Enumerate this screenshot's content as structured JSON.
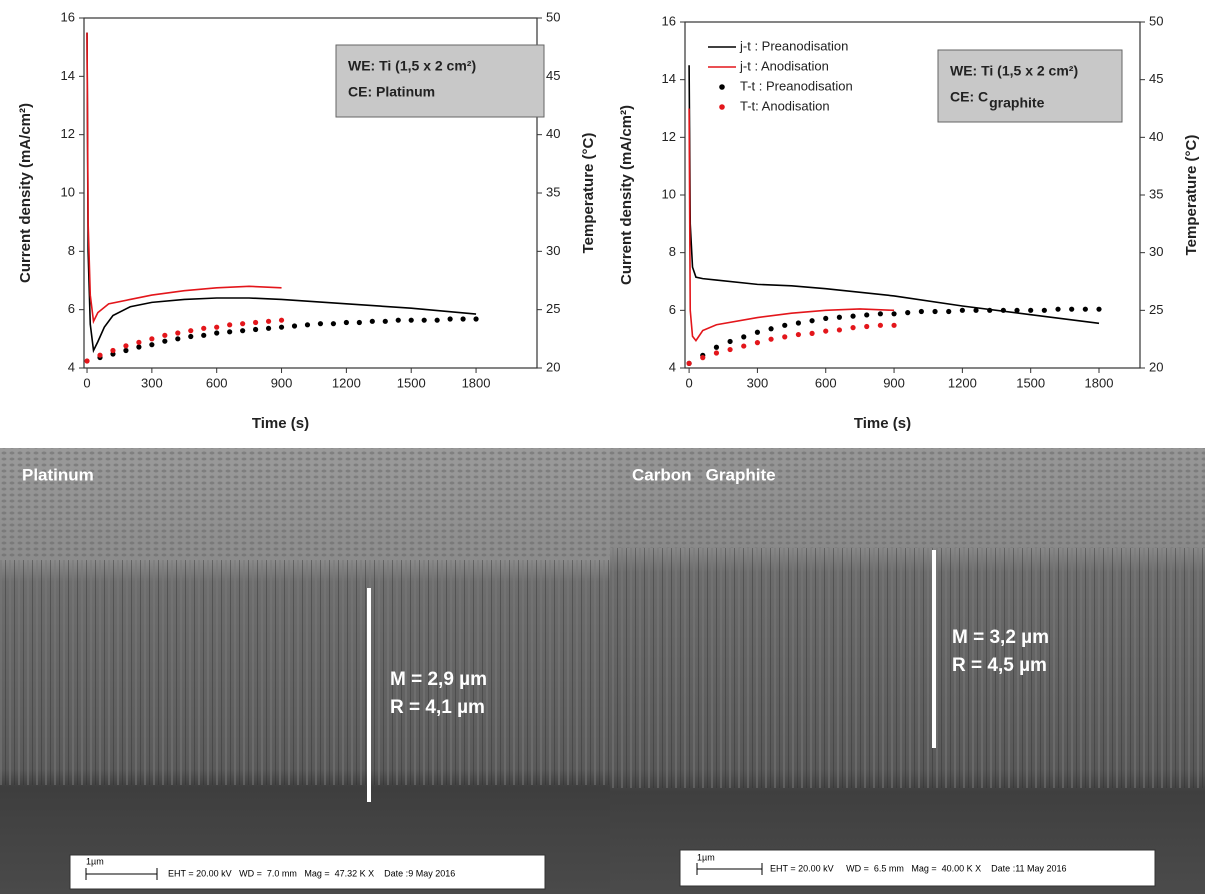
{
  "chart_data": [
    {
      "type": "line",
      "xlabel": "Time (s)",
      "ylabel": "Current density (mA/cm²)",
      "y2label": "Temperature (°C)",
      "xlim": [
        -14,
        2082
      ],
      "xticks": [
        0,
        300,
        600,
        900,
        1200,
        1500,
        1800
      ],
      "ylim": [
        4,
        16
      ],
      "yticks": [
        4,
        6,
        8,
        10,
        12,
        14,
        16
      ],
      "y2lim": [
        20,
        50
      ],
      "y2ticks": [
        20,
        25,
        30,
        35,
        40,
        45,
        50
      ],
      "annotation": {
        "lines": [
          "WE: Ti (1,5 x 2 cm²)",
          "CE: Platinum"
        ]
      },
      "series": [
        {
          "color": "#000000",
          "style": "line",
          "x": [
            0,
            5,
            15,
            30,
            50,
            80,
            120,
            200,
            300,
            450,
            600,
            750,
            900,
            1200,
            1500,
            1800
          ],
          "values": [
            15.5,
            8,
            5.5,
            4.6,
            4.9,
            5.4,
            5.8,
            6.1,
            6.25,
            6.35,
            6.4,
            6.4,
            6.35,
            6.2,
            6.05,
            5.85
          ]
        },
        {
          "color": "#e3161b",
          "style": "line",
          "x": [
            0,
            5,
            15,
            30,
            50,
            100,
            200,
            300,
            450,
            600,
            750,
            900
          ],
          "values": [
            15.5,
            9,
            6.5,
            5.6,
            5.9,
            6.2,
            6.35,
            6.5,
            6.65,
            6.75,
            6.8,
            6.75
          ]
        },
        {
          "color": "#000000",
          "style": "dots",
          "axis": "y2",
          "x": [
            60,
            120,
            180,
            240,
            300,
            360,
            420,
            480,
            540,
            600,
            660,
            720,
            780,
            840,
            900,
            960,
            1020,
            1080,
            1140,
            1200,
            1260,
            1320,
            1380,
            1440,
            1500,
            1560,
            1620,
            1680,
            1740,
            1800
          ],
          "values": [
            20.9,
            21.2,
            21.5,
            21.8,
            22.0,
            22.3,
            22.5,
            22.7,
            22.8,
            23.0,
            23.1,
            23.2,
            23.3,
            23.4,
            23.5,
            23.6,
            23.7,
            23.8,
            23.8,
            23.9,
            23.9,
            24.0,
            24.0,
            24.1,
            24.1,
            24.1,
            24.1,
            24.2,
            24.2,
            24.2
          ]
        },
        {
          "color": "#e3161b",
          "style": "dots",
          "axis": "y2",
          "x": [
            0,
            60,
            120,
            180,
            240,
            300,
            360,
            420,
            480,
            540,
            600,
            660,
            720,
            780,
            840,
            900
          ],
          "values": [
            20.6,
            21.1,
            21.5,
            21.9,
            22.2,
            22.5,
            22.8,
            23.0,
            23.2,
            23.4,
            23.5,
            23.7,
            23.8,
            23.9,
            24.0,
            24.1
          ]
        }
      ]
    },
    {
      "type": "line",
      "xlabel": "Time (s)",
      "ylabel": "Current density (mA/cm²)",
      "y2label": "Temperature (°C)",
      "xlim": [
        -18,
        1980
      ],
      "xticks": [
        0,
        300,
        600,
        900,
        1200,
        1500,
        1800
      ],
      "ylim": [
        4,
        16
      ],
      "yticks": [
        4,
        6,
        8,
        10,
        12,
        14,
        16
      ],
      "y2lim": [
        20,
        50
      ],
      "y2ticks": [
        20,
        25,
        30,
        35,
        40,
        45,
        50
      ],
      "annotation": {
        "lines": [
          "WE: Ti (1,5 x 2 cm²)",
          "CE: C"
        ],
        "subscript": "graphite"
      },
      "legend": "top-left",
      "series": [
        {
          "name": "j-t : Preanodisation",
          "color": "#000000",
          "style": "line",
          "x": [
            0,
            5,
            15,
            30,
            60,
            120,
            300,
            450,
            600,
            900,
            1200,
            1500,
            1800
          ],
          "values": [
            14.5,
            9,
            7.5,
            7.15,
            7.1,
            7.05,
            6.9,
            6.85,
            6.75,
            6.5,
            6.15,
            5.85,
            5.55
          ]
        },
        {
          "name": "j-t : Anodisation",
          "color": "#e3161b",
          "style": "line",
          "x": [
            0,
            5,
            15,
            30,
            60,
            120,
            300,
            450,
            600,
            750,
            900
          ],
          "values": [
            13,
            6,
            5.1,
            4.95,
            5.3,
            5.5,
            5.75,
            5.9,
            6.0,
            6.05,
            6.0
          ]
        },
        {
          "name": "T-t : Preanodisation",
          "color": "#000000",
          "style": "dots",
          "axis": "y2",
          "x": [
            0,
            60,
            120,
            180,
            240,
            300,
            360,
            420,
            480,
            540,
            600,
            660,
            720,
            780,
            840,
            900,
            960,
            1020,
            1080,
            1140,
            1200,
            1260,
            1320,
            1380,
            1440,
            1500,
            1560,
            1620,
            1680,
            1740,
            1800
          ],
          "values": [
            20.4,
            21.1,
            21.8,
            22.3,
            22.7,
            23.1,
            23.4,
            23.7,
            23.9,
            24.1,
            24.3,
            24.4,
            24.5,
            24.6,
            24.7,
            24.7,
            24.8,
            24.9,
            24.9,
            24.9,
            25.0,
            25.0,
            25.0,
            25.0,
            25.0,
            25.0,
            25.0,
            25.1,
            25.1,
            25.1,
            25.1
          ]
        },
        {
          "name": "T-t: Anodisation",
          "color": "#e3161b",
          "style": "dots",
          "axis": "y2",
          "x": [
            0,
            60,
            120,
            180,
            240,
            300,
            360,
            420,
            480,
            540,
            600,
            660,
            720,
            780,
            840,
            900
          ],
          "values": [
            20.4,
            20.9,
            21.3,
            21.6,
            21.9,
            22.2,
            22.5,
            22.7,
            22.9,
            23.0,
            23.2,
            23.3,
            23.5,
            23.6,
            23.7,
            23.7
          ]
        }
      ]
    }
  ],
  "images": [
    {
      "label": "Platinum",
      "measurements": [
        "M = 2,9 µm",
        "R = 4,1 µm"
      ],
      "scalebar": "1µm",
      "info": "EHT = 20.00 kV   WD =  7.0 mm   Mag =  47.32 K X    Date :9 May 2016"
    },
    {
      "label": "Carbon   Graphite",
      "measurements": [
        "M = 3,2 µm",
        "R = 4,5 µm"
      ],
      "scalebar": "1µm",
      "info": "EHT = 20.00 kV     WD =  6.5 mm   Mag =  40.00 K X    Date :11 May 2016"
    }
  ]
}
